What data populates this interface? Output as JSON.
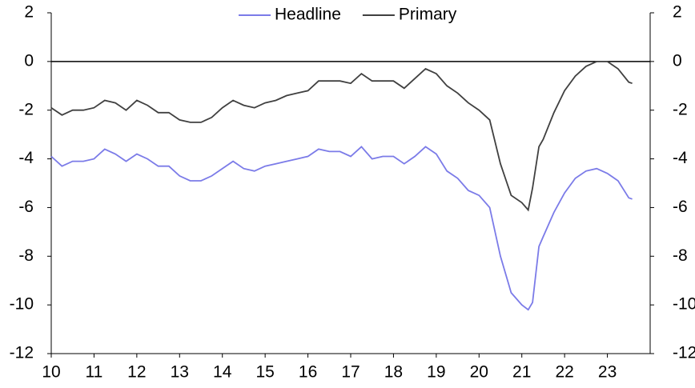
{
  "chart_data": {
    "type": "line",
    "x": [
      10.0,
      10.25,
      10.5,
      10.75,
      11.0,
      11.25,
      11.5,
      11.75,
      12.0,
      12.25,
      12.5,
      12.75,
      13.0,
      13.25,
      13.5,
      13.75,
      14.0,
      14.25,
      14.5,
      14.75,
      15.0,
      15.25,
      15.5,
      15.75,
      16.0,
      16.25,
      16.5,
      16.75,
      17.0,
      17.25,
      17.5,
      17.75,
      18.0,
      18.25,
      18.5,
      18.75,
      19.0,
      19.25,
      19.5,
      19.75,
      20.0,
      20.25,
      20.5,
      20.75,
      21.0,
      21.15,
      21.25,
      21.4,
      21.5,
      21.75,
      22.0,
      22.25,
      22.5,
      22.75,
      23.0,
      23.25,
      23.5,
      23.58
    ],
    "series": [
      {
        "name": "Headline",
        "color": "#7b7be8",
        "values": [
          -3.9,
          -4.3,
          -4.1,
          -4.1,
          -4.0,
          -3.6,
          -3.8,
          -4.1,
          -3.8,
          -4.0,
          -4.3,
          -4.3,
          -4.7,
          -4.9,
          -4.9,
          -4.7,
          -4.4,
          -4.1,
          -4.4,
          -4.5,
          -4.3,
          -4.2,
          -4.1,
          -4.0,
          -3.9,
          -3.6,
          -3.7,
          -3.7,
          -3.9,
          -3.5,
          -4.0,
          -3.9,
          -3.9,
          -4.2,
          -3.9,
          -3.5,
          -3.8,
          -4.5,
          -4.8,
          -5.3,
          -5.5,
          -6.0,
          -8.0,
          -9.5,
          -10.0,
          -10.2,
          -9.9,
          -7.6,
          -7.2,
          -6.2,
          -5.4,
          -4.8,
          -4.5,
          -4.4,
          -4.6,
          -4.9,
          -5.6,
          -5.65
        ]
      },
      {
        "name": "Primary",
        "color": "#404040",
        "values": [
          -1.9,
          -2.2,
          -2.0,
          -2.0,
          -1.9,
          -1.6,
          -1.7,
          -2.0,
          -1.6,
          -1.8,
          -2.1,
          -2.1,
          -2.4,
          -2.5,
          -2.5,
          -2.3,
          -1.9,
          -1.6,
          -1.8,
          -1.9,
          -1.7,
          -1.6,
          -1.4,
          -1.3,
          -1.2,
          -0.8,
          -0.8,
          -0.8,
          -0.9,
          -0.5,
          -0.8,
          -0.8,
          -0.8,
          -1.1,
          -0.7,
          -0.3,
          -0.5,
          -1.0,
          -1.3,
          -1.7,
          -2.0,
          -2.4,
          -4.2,
          -5.5,
          -5.8,
          -6.1,
          -5.2,
          -3.5,
          -3.2,
          -2.1,
          -1.2,
          -0.6,
          -0.2,
          0.0,
          0.0,
          -0.3,
          -0.85,
          -0.9
        ]
      }
    ],
    "xlim": [
      10,
      24
    ],
    "xticks": [
      10,
      11,
      12,
      13,
      14,
      15,
      16,
      17,
      18,
      19,
      20,
      21,
      22,
      23
    ],
    "ylim": [
      -12,
      2
    ],
    "yticks": [
      2,
      0,
      -2,
      -4,
      -6,
      -8,
      -10,
      -12
    ],
    "legend": "top"
  }
}
